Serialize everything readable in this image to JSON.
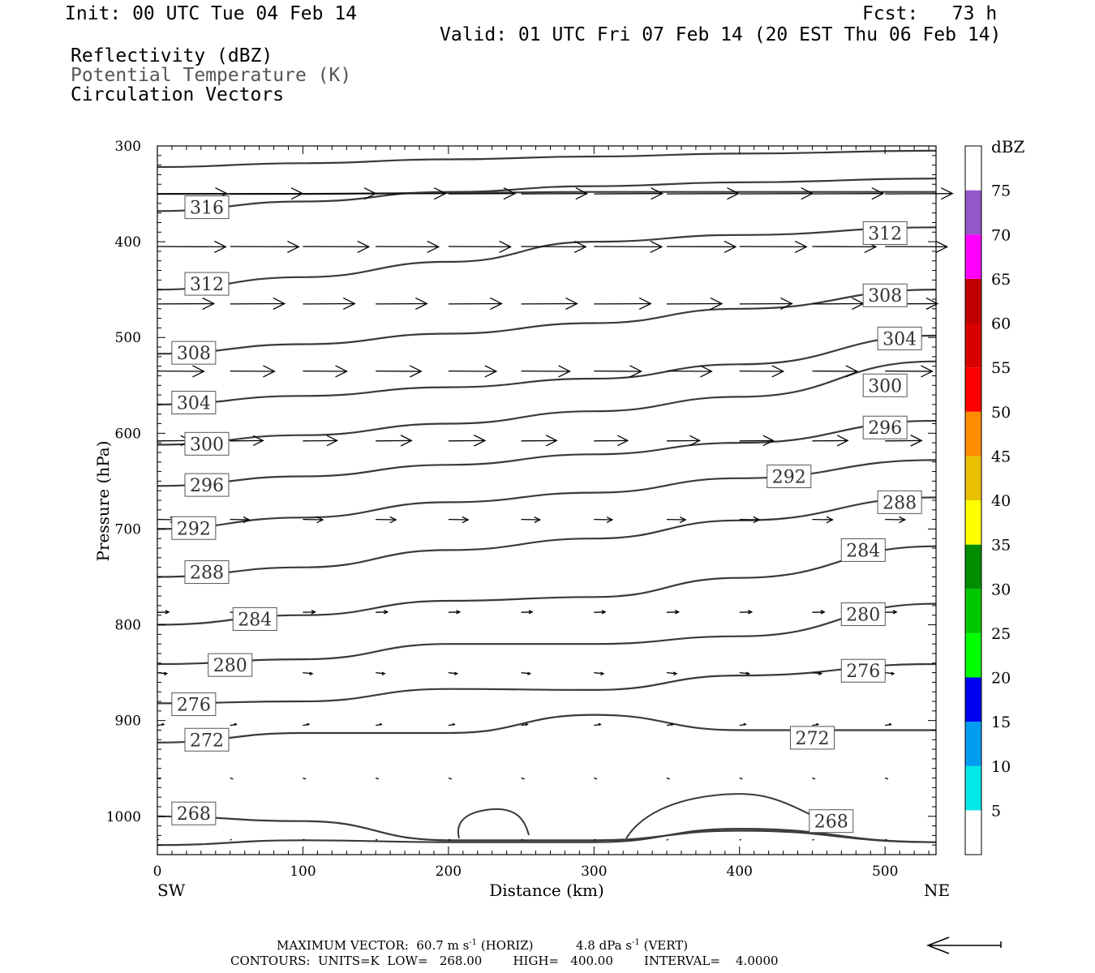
{
  "header": {
    "init": "Init: 00 UTC Tue 04 Feb 14",
    "fcst": "Fcst:   73 h",
    "valid": "Valid: 01 UTC Fri 07 Feb 14 (20 EST Thu 06 Feb 14)",
    "field1": "Reflectivity (dBZ)",
    "field2": "Potential Temperature (K)",
    "field3": "Circulation Vectors"
  },
  "colors": {
    "field2_text": "#555555",
    "contour": "#3a3a3a",
    "frame": "#000000"
  },
  "chart_data": {
    "type": "line",
    "xlabel": "Distance (km)",
    "ylabel": "Pressure (hPa)",
    "x_range": [
      0,
      535
    ],
    "y_range": [
      300,
      1040
    ],
    "y_scale": "linear, inverted",
    "x_ticks": [
      0,
      100,
      200,
      300,
      400,
      500
    ],
    "y_ticks": [
      300,
      400,
      500,
      600,
      700,
      800,
      900,
      1000
    ],
    "left_end_label": "SW",
    "right_end_label": "NE",
    "colorbar": {
      "unit": "dBZ",
      "levels": [
        5,
        10,
        15,
        20,
        25,
        30,
        35,
        40,
        45,
        50,
        55,
        60,
        65,
        70,
        75
      ],
      "colors": [
        "#ffffff",
        "#00e8e8",
        "#009cf0",
        "#0000f0",
        "#00ff00",
        "#00c800",
        "#008c00",
        "#ffff00",
        "#e8c000",
        "#ff8c00",
        "#ff0000",
        "#d80000",
        "#c00000",
        "#ff00ff",
        "#9458c8",
        "#ffffff"
      ]
    },
    "contour_series": [
      {
        "x": [
          0,
          100,
          200,
          300,
          400,
          535
        ],
        "y": [
          322,
          318,
          314,
          311,
          308,
          305
        ]
      },
      {
        "x": [
          0,
          100,
          200,
          300,
          400,
          535
        ],
        "y": [
          368,
          358,
          348,
          342,
          338,
          334
        ]
      },
      {
        "x": [
          0,
          100,
          200,
          300,
          400,
          535
        ],
        "y": [
          350,
          350,
          349,
          348,
          348,
          348
        ]
      },
      {
        "x": [
          0,
          100,
          200,
          300,
          400,
          535
        ],
        "y": [
          450,
          437,
          421,
          400,
          393,
          385
        ]
      },
      {
        "x": [
          0,
          100,
          200,
          300,
          400,
          535
        ],
        "y": [
          517,
          507,
          496,
          485,
          470,
          450
        ]
      },
      {
        "x": [
          0,
          100,
          200,
          300,
          400,
          535
        ],
        "y": [
          570,
          561,
          552,
          543,
          528,
          498
        ]
      },
      {
        "x": [
          0,
          100,
          200,
          300,
          400,
          535
        ],
        "y": [
          612,
          602,
          590,
          577,
          562,
          525
        ]
      },
      {
        "x": [
          0,
          100,
          200,
          300,
          400,
          535
        ],
        "y": [
          655,
          645,
          633,
          622,
          610,
          587
        ]
      },
      {
        "x": [
          0,
          100,
          200,
          300,
          400,
          535
        ],
        "y": [
          700,
          688,
          672,
          662,
          647,
          628
        ]
      },
      {
        "x": [
          0,
          100,
          200,
          300,
          400,
          535
        ],
        "y": [
          750,
          740,
          722,
          710,
          691,
          667
        ]
      },
      {
        "x": [
          0,
          100,
          200,
          300,
          400,
          535
        ],
        "y": [
          800,
          790,
          775,
          771,
          751,
          718
        ]
      },
      {
        "x": [
          0,
          100,
          200,
          300,
          400,
          535
        ],
        "y": [
          841,
          836,
          820,
          820,
          812,
          778
        ]
      },
      {
        "x": [
          0,
          100,
          200,
          300,
          400,
          535
        ],
        "y": [
          882,
          880,
          867,
          868,
          853,
          841
        ]
      },
      {
        "x": [
          0,
          100,
          200,
          300,
          400,
          535
        ],
        "y": [
          923,
          913,
          913,
          894,
          910,
          910
        ]
      },
      {
        "x": [
          0,
          100,
          200,
          300,
          400,
          535
        ],
        "y": [
          1000,
          1005,
          1025,
          1025,
          1015,
          1027
        ]
      },
      {
        "x": [
          0,
          100,
          200,
          300,
          400,
          535
        ],
        "y": [
          1030,
          1025,
          1027,
          1027,
          1013,
          1027
        ]
      }
    ],
    "contour_labels": [
      {
        "text": "316",
        "x": 34,
        "y": 364
      },
      {
        "text": "312",
        "x": 500,
        "y": 391
      },
      {
        "text": "312",
        "x": 34,
        "y": 444
      },
      {
        "text": "308",
        "x": 500,
        "y": 456
      },
      {
        "text": "304",
        "x": 510,
        "y": 501
      },
      {
        "text": "308",
        "x": 25,
        "y": 516
      },
      {
        "text": "300",
        "x": 500,
        "y": 550
      },
      {
        "text": "304",
        "x": 25,
        "y": 568
      },
      {
        "text": "296",
        "x": 500,
        "y": 594
      },
      {
        "text": "300",
        "x": 34,
        "y": 611
      },
      {
        "text": "292",
        "x": 434,
        "y": 645
      },
      {
        "text": "296",
        "x": 34,
        "y": 654
      },
      {
        "text": "288",
        "x": 510,
        "y": 672
      },
      {
        "text": "292",
        "x": 25,
        "y": 699
      },
      {
        "text": "284",
        "x": 485,
        "y": 722
      },
      {
        "text": "288",
        "x": 34,
        "y": 745
      },
      {
        "text": "280",
        "x": 485,
        "y": 789
      },
      {
        "text": "284",
        "x": 67,
        "y": 794
      },
      {
        "text": "280",
        "x": 50,
        "y": 842
      },
      {
        "text": "276",
        "x": 485,
        "y": 848
      },
      {
        "text": "276",
        "x": 25,
        "y": 883
      },
      {
        "text": "272",
        "x": 450,
        "y": 918
      },
      {
        "text": "272",
        "x": 34,
        "y": 920
      },
      {
        "text": "268",
        "x": 25,
        "y": 997
      },
      {
        "text": "268",
        "x": 463,
        "y": 1005
      }
    ],
    "max_vector": "60.7",
    "max_vector_vert": "4.8"
  },
  "footer": {
    "max_prefix": "MAXIMUM VECTOR:",
    "horiz_unit": "m s",
    "horiz_tag": "(HORIZ)",
    "vert_unit": "dPa s",
    "vert_tag": "(VERT)",
    "exp": "-1",
    "contours_line": "CONTOURS:  UNITS=K  LOW=   268.00        HIGH=   400.00        INTERVAL=    4.0000"
  }
}
